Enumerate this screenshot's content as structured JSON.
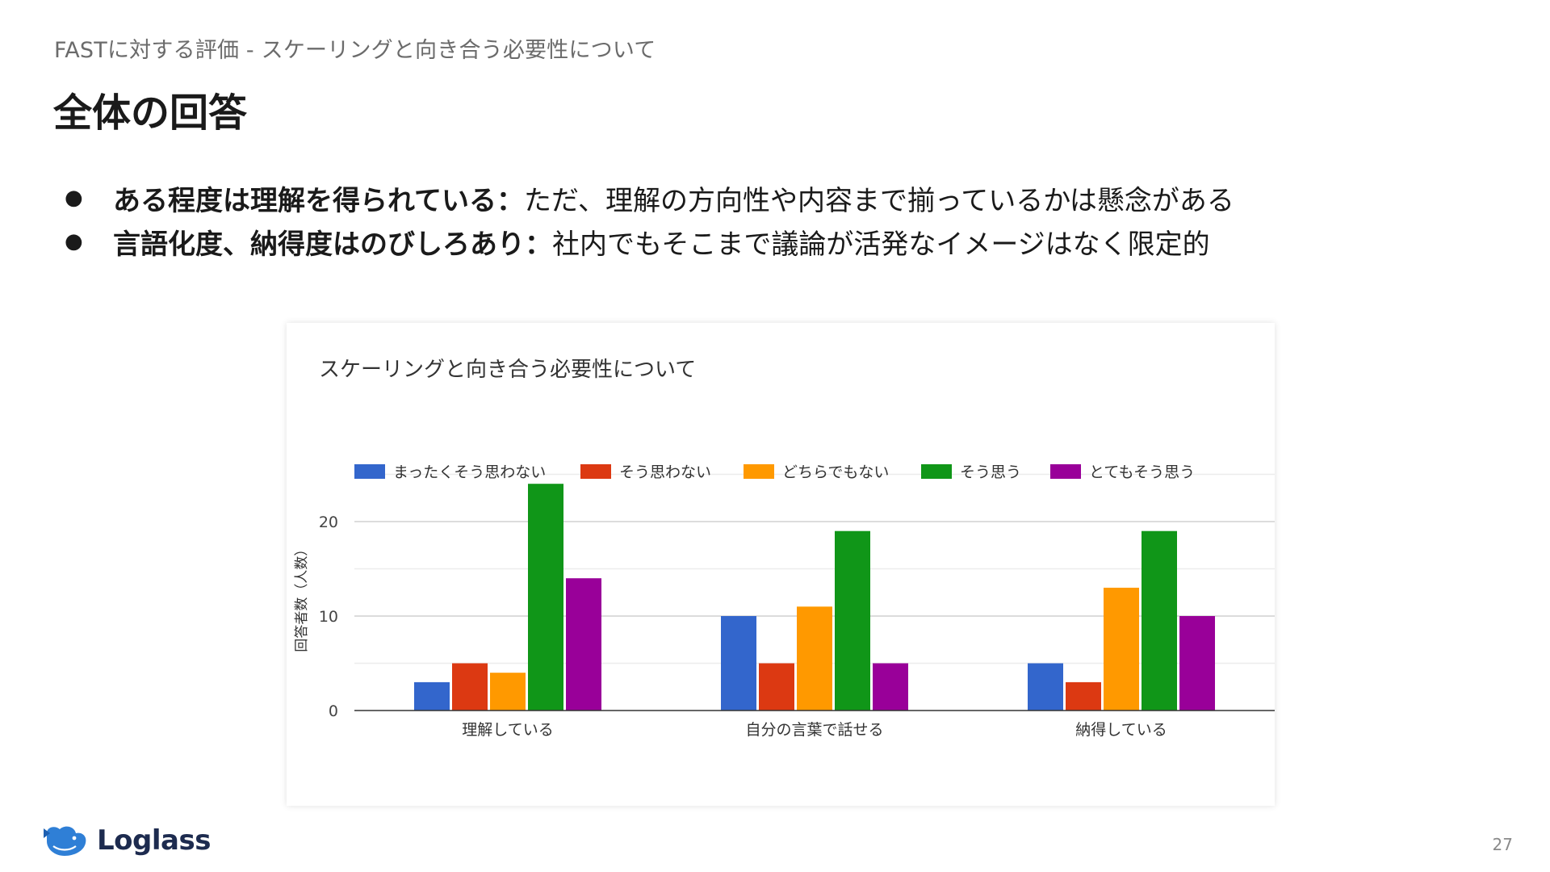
{
  "header": {
    "breadcrumb": "FASTに対する評価 - スケーリングと向き合う必要性について",
    "title": "全体の回答"
  },
  "bullets": [
    {
      "marker": "●",
      "strong": "ある程度は理解を得られている：",
      "text": "ただ、理解の方向性や内容まで揃っているかは懸念がある"
    },
    {
      "marker": "●",
      "strong": "言語化度、納得度はのびしろあり：",
      "text": "社内でもそこまで議論が活発なイメージはなく限定的"
    }
  ],
  "chart_data": {
    "type": "bar",
    "title": "スケーリングと向き合う必要性について",
    "xlabel": "",
    "ylabel": "回答者数（人数）",
    "categories": [
      "理解している",
      "自分の言葉で話せる",
      "納得している"
    ],
    "series": [
      {
        "name": "まったくそう思わない",
        "color": "#3366cc",
        "values": [
          3,
          10,
          5
        ]
      },
      {
        "name": "そう思わない",
        "color": "#dc3912",
        "values": [
          5,
          5,
          3
        ]
      },
      {
        "name": "どちらでもない",
        "color": "#ff9900",
        "values": [
          4,
          11,
          13
        ]
      },
      {
        "name": "そう思う",
        "color": "#109618",
        "values": [
          24,
          19,
          19
        ]
      },
      {
        "name": "とてもそう思う",
        "color": "#990099",
        "values": [
          14,
          5,
          10
        ]
      }
    ],
    "ylim": [
      0,
      25
    ],
    "yticks": [
      0,
      10,
      20
    ],
    "grid": true,
    "legend_position": "top"
  },
  "footer": {
    "logo_text": "Loglass",
    "page_number": "27"
  }
}
